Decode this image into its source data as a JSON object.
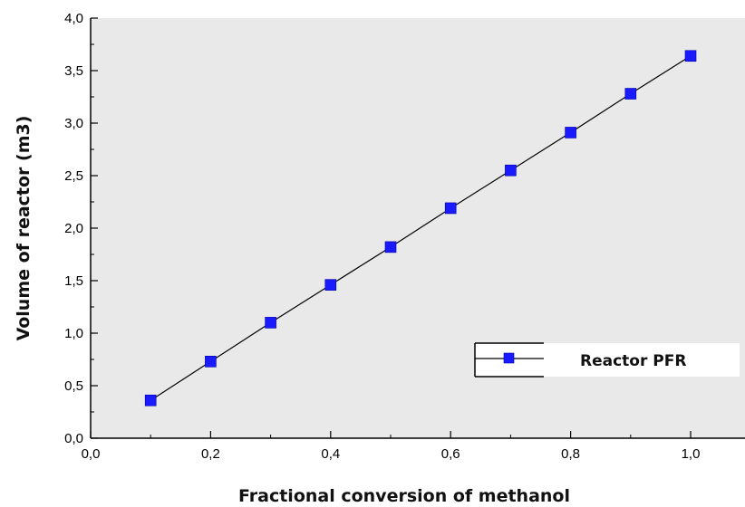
{
  "chart_data": {
    "type": "line",
    "title": "",
    "xlabel": "Fractional conversion of methanol",
    "ylabel": "Volume of reactor (m3)",
    "xlim": [
      0.0,
      1.1
    ],
    "ylim": [
      0.0,
      4.0
    ],
    "x_ticks": [
      "0,0",
      "0,2",
      "0,4",
      "0,6",
      "0,8",
      "1,0"
    ],
    "x_tick_values": [
      0.0,
      0.2,
      0.4,
      0.6,
      0.8,
      1.0
    ],
    "y_ticks": [
      "0,0",
      "0,5",
      "1,0",
      "1,5",
      "2,0",
      "2,5",
      "3,0",
      "3,5",
      "4,0"
    ],
    "y_tick_values": [
      0.0,
      0.5,
      1.0,
      1.5,
      2.0,
      2.5,
      3.0,
      3.5,
      4.0
    ],
    "grid": false,
    "background_color": "#e9e9e9",
    "legend_position": "lower-right",
    "series": [
      {
        "name": "Reactor PFR",
        "color": "#1a1aff",
        "line_color": "#000000",
        "marker": "square",
        "x": [
          0.1,
          0.2,
          0.3,
          0.4,
          0.5,
          0.6,
          0.7,
          0.8,
          0.9,
          1.0
        ],
        "y": [
          0.36,
          0.73,
          1.1,
          1.46,
          1.82,
          2.19,
          2.55,
          2.91,
          3.28,
          3.64
        ]
      }
    ]
  }
}
